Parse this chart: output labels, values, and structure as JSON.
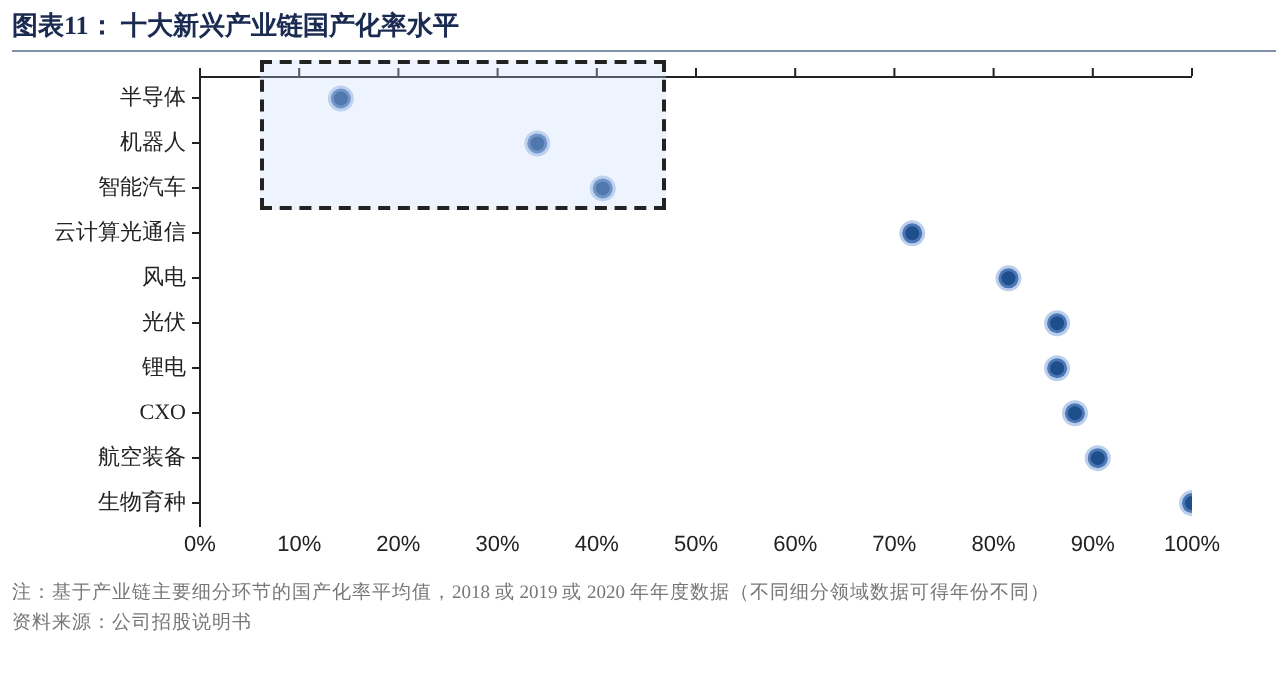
{
  "chart_data": {
    "type": "lollipop",
    "orientation": "horizontal",
    "title": "图表11：  十大新兴产业链国产化率水平",
    "categories": [
      "半导体",
      "机器人",
      "智能汽车",
      "云计算光通信",
      "风电",
      "光伏",
      "锂电",
      "CXO",
      "航空装备",
      "生物育种"
    ],
    "values": [
      14.2,
      34,
      40.6,
      71.8,
      81.5,
      86.4,
      86.4,
      88.2,
      90.5,
      100
    ],
    "color": "#1f4e8c",
    "marker": "circle",
    "grid": false,
    "legend": false,
    "xlim": [
      0,
      100
    ],
    "xticks": [
      {
        "value": 0,
        "label": "0%"
      },
      {
        "value": 10,
        "label": "10%"
      },
      {
        "value": 20,
        "label": "20%"
      },
      {
        "value": 30,
        "label": "30%"
      },
      {
        "value": 40,
        "label": "40%"
      },
      {
        "value": 50,
        "label": "50%"
      },
      {
        "value": 60,
        "label": "60%"
      },
      {
        "value": 70,
        "label": "70%"
      },
      {
        "value": 80,
        "label": "80%"
      },
      {
        "value": 90,
        "label": "90%"
      },
      {
        "value": 100,
        "label": "100%"
      }
    ],
    "annotations": [
      "注：基于产业链主要细分环节的国产化率平均值，2018 或 2019 或 2020 年年度数据（不同细分领域数据可得年份不同）",
      "资料来源：公司招股说明书"
    ]
  }
}
